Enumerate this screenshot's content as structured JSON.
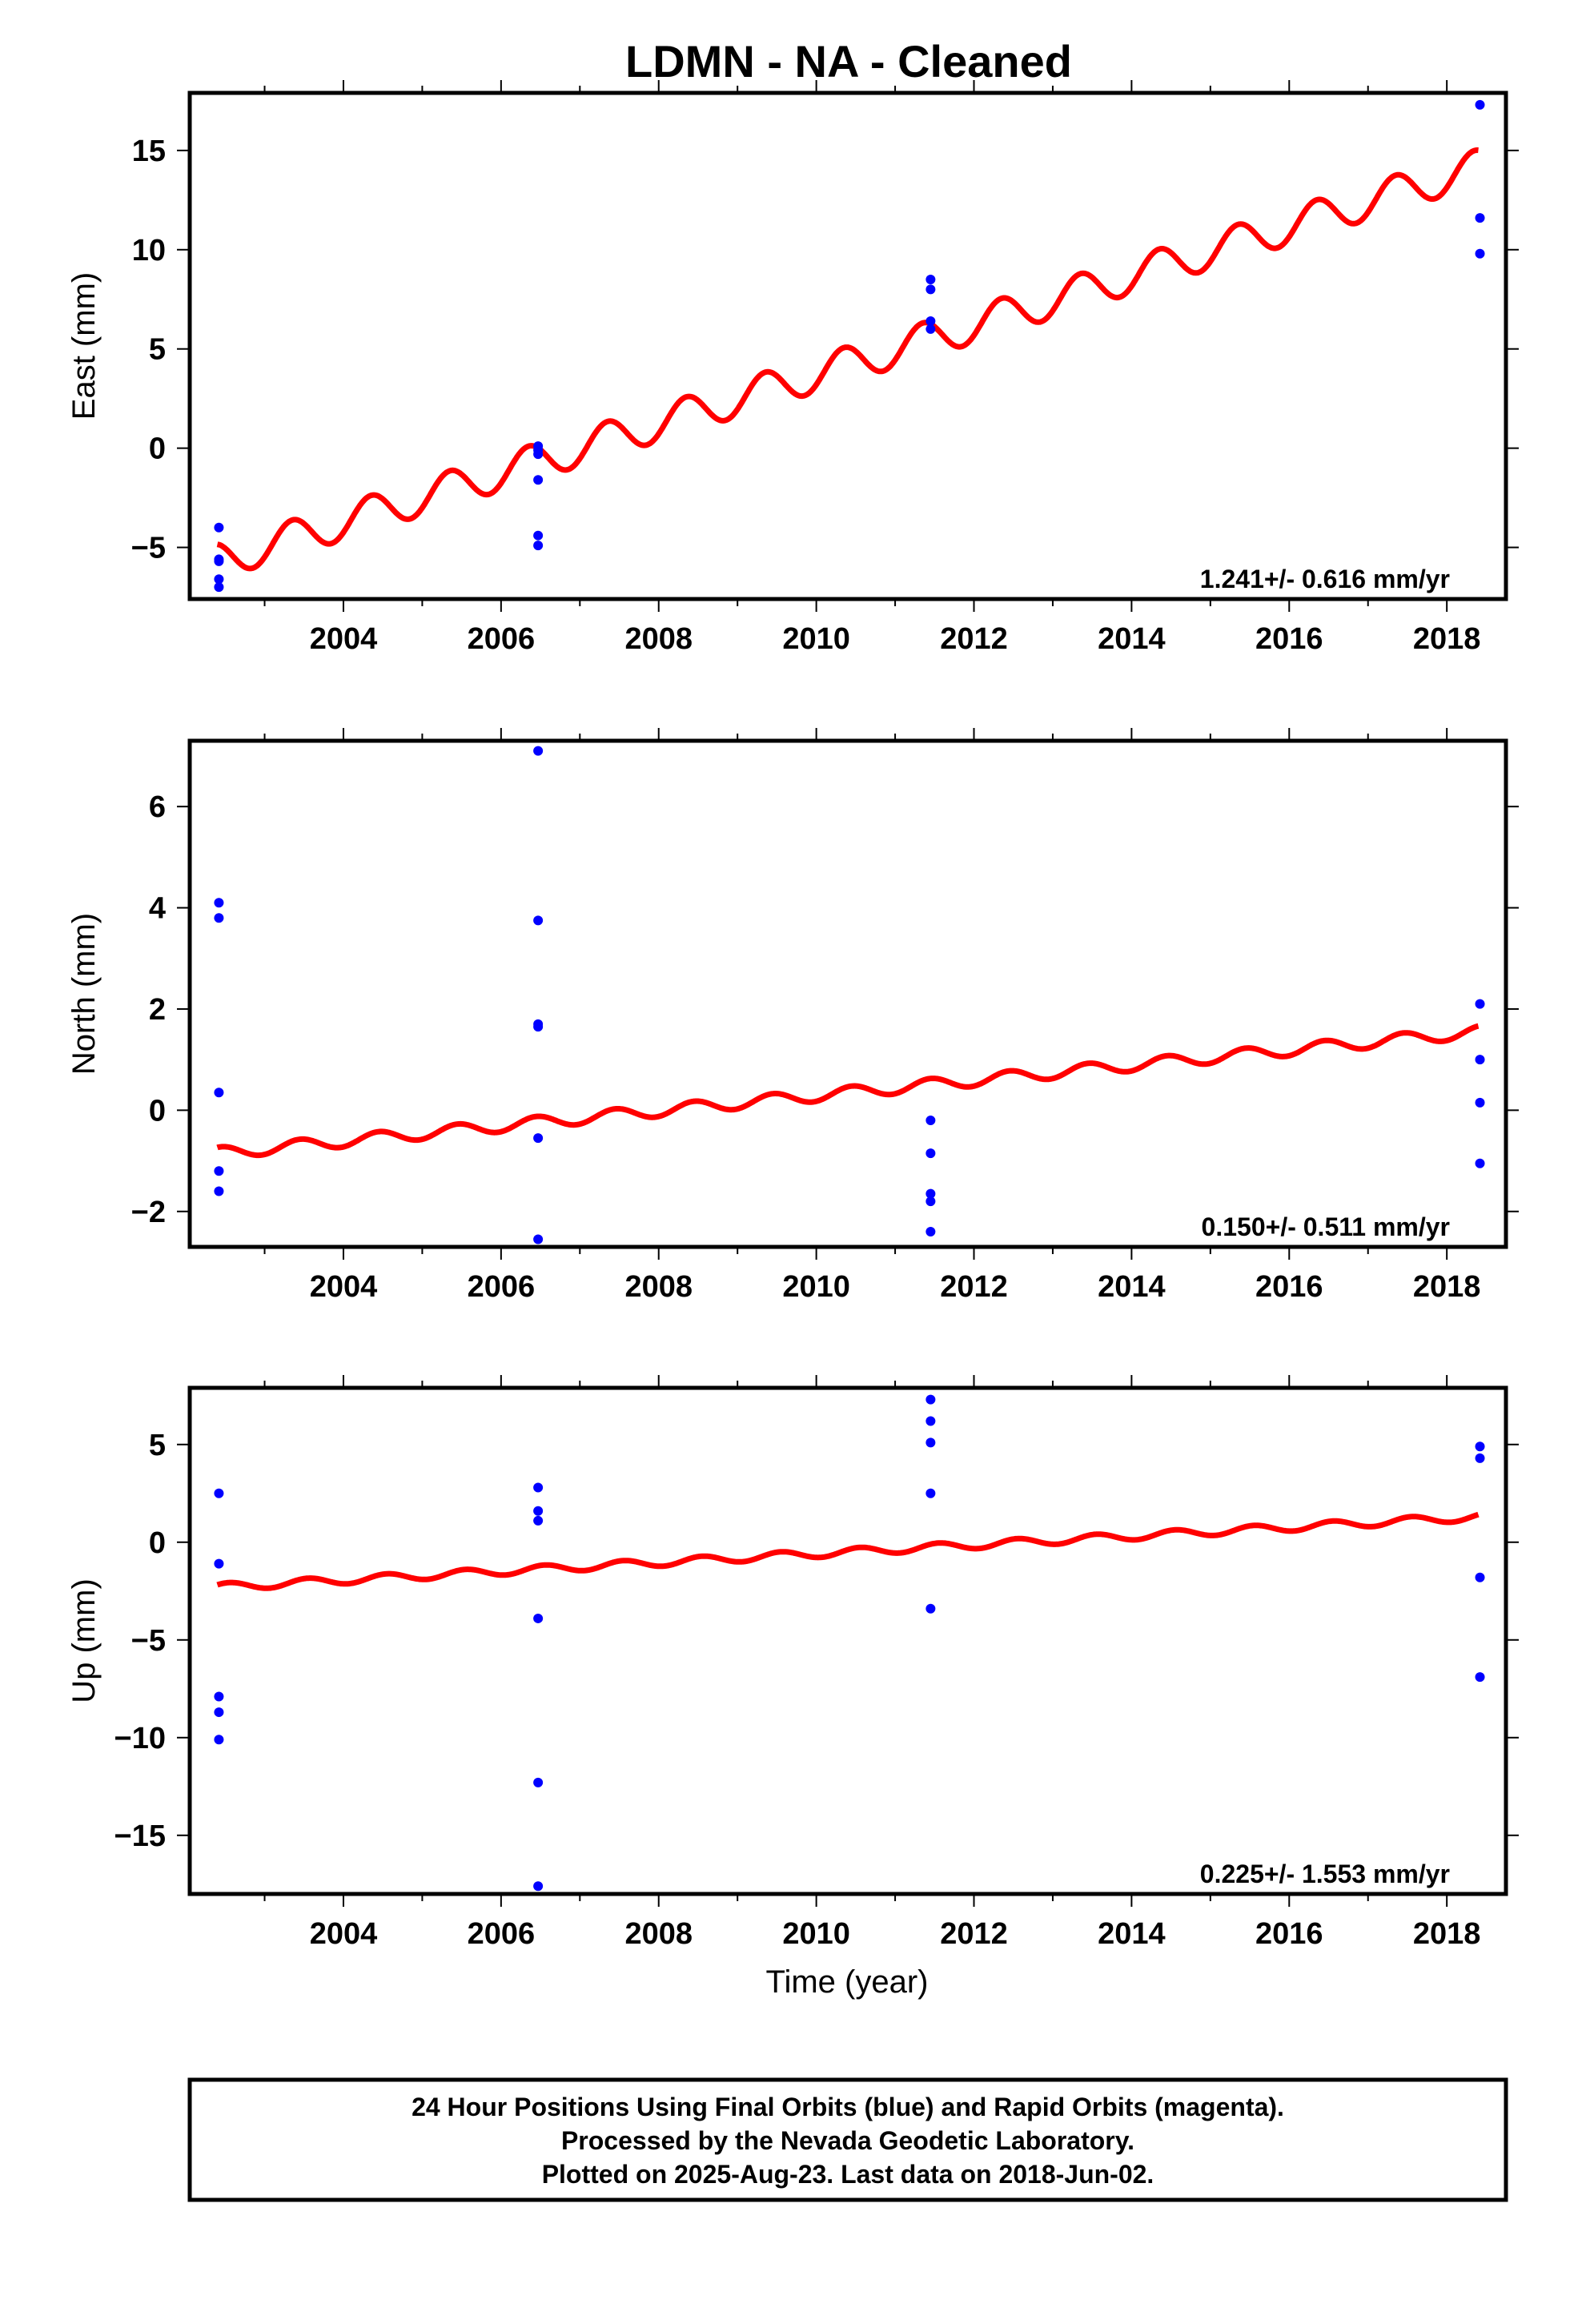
{
  "title": "LDMN  - NA - Cleaned",
  "colors": {
    "model": "#ff0000",
    "observations": "#0000ff",
    "frame": "#000000"
  },
  "xlabel": "Time (year)",
  "footer": {
    "line1": "24 Hour Positions Using Final Orbits (blue) and Rapid Orbits (magenta).",
    "line2": "Processed by the Nevada Geodetic Laboratory.",
    "line3": "Plotted on 2025-Aug-23. Last data on 2018-Jun-02."
  },
  "chart_data": [
    {
      "type": "scatter",
      "ylabel": "East (mm)",
      "rate_label": "1.241+/- 0.616 mm/yr",
      "xlim": [
        2002.05,
        2018.75
      ],
      "ylim": [
        -7.6,
        17.9
      ],
      "xticks": [
        2004,
        2006,
        2008,
        2010,
        2012,
        2014,
        2016,
        2018
      ],
      "yticks": [
        -5,
        0,
        5,
        10,
        15
      ],
      "model": {
        "start": 2002.4,
        "end": 2018.4,
        "intercept": -5.7,
        "slope": 1.241,
        "annual_amplitude": 0.9,
        "phase": 0.1
      },
      "points": [
        {
          "x": 2002.42,
          "y": [
            -4.0,
            -5.6,
            -5.7,
            -6.6,
            -7.0
          ]
        },
        {
          "x": 2006.47,
          "y": [
            0.1,
            -0.1,
            -0.3,
            -1.6,
            -4.4,
            -4.9
          ]
        },
        {
          "x": 2011.45,
          "y": [
            8.5,
            8.0,
            6.4,
            6.0
          ]
        },
        {
          "x": 2018.42,
          "y": [
            17.3,
            11.6,
            9.8
          ]
        }
      ]
    },
    {
      "type": "scatter",
      "ylabel": "North (mm)",
      "rate_label": "0.150+/- 0.511 mm/yr",
      "xlim": [
        2002.05,
        2018.75
      ],
      "ylim": [
        -2.7,
        7.3
      ],
      "xticks": [
        2004,
        2006,
        2008,
        2010,
        2012,
        2014,
        2016,
        2018
      ],
      "yticks": [
        -2,
        0,
        2,
        4,
        6
      ],
      "model": {
        "start": 2002.4,
        "end": 2018.4,
        "intercept": -0.85,
        "slope": 0.15,
        "annual_amplitude": 0.12,
        "phase": 0.2
      },
      "points": [
        {
          "x": 2002.42,
          "y": [
            4.1,
            3.8,
            0.35,
            -1.2,
            -1.6
          ]
        },
        {
          "x": 2006.47,
          "y": [
            7.1,
            3.75,
            1.7,
            1.65,
            -0.55,
            -2.55
          ]
        },
        {
          "x": 2011.45,
          "y": [
            -0.2,
            -0.85,
            -1.65,
            -1.8,
            -2.4
          ]
        },
        {
          "x": 2018.42,
          "y": [
            2.1,
            1.0,
            0.15,
            -1.05
          ]
        }
      ]
    },
    {
      "type": "scatter",
      "ylabel": "Up (mm)",
      "rate_label": "0.225+/- 1.553 mm/yr",
      "xlim": [
        2002.05,
        2018.75
      ],
      "ylim": [
        -18.0,
        7.9
      ],
      "xticks": [
        2004,
        2006,
        2008,
        2010,
        2012,
        2014,
        2016,
        2018
      ],
      "yticks": [
        -15,
        -10,
        -5,
        0,
        5
      ],
      "model": {
        "start": 2002.4,
        "end": 2018.4,
        "intercept": -2.3,
        "slope": 0.225,
        "annual_amplitude": 0.2,
        "phase": 0.3
      },
      "points": [
        {
          "x": 2002.42,
          "y": [
            2.5,
            -1.1,
            -7.9,
            -8.7,
            -10.1
          ]
        },
        {
          "x": 2006.47,
          "y": [
            2.8,
            1.6,
            1.1,
            -3.9,
            -12.3,
            -17.6
          ]
        },
        {
          "x": 2011.45,
          "y": [
            7.3,
            6.2,
            5.1,
            2.5,
            -3.4
          ]
        },
        {
          "x": 2018.42,
          "y": [
            4.9,
            4.3,
            -1.8,
            -6.9
          ]
        }
      ]
    }
  ]
}
